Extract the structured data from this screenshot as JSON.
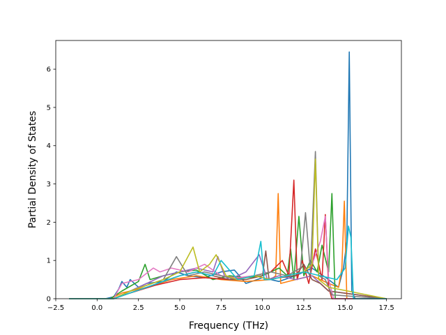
{
  "chart_data": {
    "type": "line",
    "title": "",
    "xlabel": "Frequency (THz)",
    "ylabel": "Partial Density of States",
    "xlim": [
      -2.5,
      18.4
    ],
    "ylim": [
      0,
      6.75
    ],
    "xticks": [
      "−2.5",
      "0.0",
      "2.5",
      "5.0",
      "7.5",
      "10.0",
      "12.5",
      "15.0",
      "17.5"
    ],
    "xtick_values": [
      -2.5,
      0,
      2.5,
      5,
      7.5,
      10,
      12.5,
      15,
      17.5
    ],
    "yticks": [
      "0",
      "1",
      "2",
      "3",
      "4",
      "5",
      "6"
    ],
    "ytick_values": [
      0,
      1,
      2,
      3,
      4,
      5,
      6
    ],
    "grid": false,
    "legend": "none",
    "colors": [
      "#1f77b4",
      "#ff7f0e",
      "#2ca02c",
      "#d62728",
      "#9467bd",
      "#8c564b",
      "#e377c2",
      "#7f7f7f",
      "#bcbd22",
      "#17becf"
    ],
    "series": [
      {
        "color": "#1f77b4",
        "x": [
          -1.7,
          0.5,
          1.0,
          1.3,
          1.5,
          1.8,
          2.0,
          2.5,
          3.0,
          4.0,
          4.8,
          5.5,
          6.5,
          7.5,
          8.3,
          9.0,
          10.0,
          11.0,
          12.0,
          13.0,
          14.0,
          14.6,
          14.9,
          15.1,
          15.25,
          15.4,
          15.6,
          17.5
        ],
        "y": [
          0,
          0,
          0.05,
          0.25,
          0.45,
          0.3,
          0.5,
          0.3,
          0.4,
          0.45,
          0.7,
          0.6,
          0.55,
          0.7,
          0.75,
          0.4,
          0.55,
          0.45,
          0.6,
          0.8,
          0.5,
          0.3,
          0.8,
          1.5,
          6.45,
          0.2,
          0,
          0
        ]
      },
      {
        "color": "#ff7f0e",
        "x": [
          -1.7,
          0.8,
          1.5,
          3.0,
          4.5,
          6.0,
          7.5,
          9.0,
          10.5,
          10.8,
          10.95,
          11.1,
          12.0,
          13.0,
          14.0,
          14.6,
          14.8,
          14.95,
          15.1,
          17.5
        ],
        "y": [
          0,
          0,
          0.15,
          0.3,
          0.5,
          0.6,
          0.5,
          0.45,
          0.5,
          0.6,
          2.75,
          0.4,
          0.5,
          0.6,
          0.4,
          0.3,
          0.8,
          2.55,
          0,
          0
        ]
      },
      {
        "color": "#2ca02c",
        "x": [
          -1.7,
          0.8,
          1.5,
          2.5,
          2.9,
          3.2,
          4.0,
          5.0,
          6.0,
          7.0,
          8.0,
          9.0,
          10.0,
          10.5,
          11.0,
          11.5,
          11.7,
          11.9,
          12.2,
          12.5,
          12.9,
          13.3,
          13.6,
          14.0,
          14.2,
          14.4,
          17.5
        ],
        "y": [
          0,
          0,
          0.2,
          0.45,
          0.9,
          0.5,
          0.6,
          0.7,
          0.75,
          0.5,
          0.6,
          0.55,
          0.6,
          0.7,
          0.8,
          0.6,
          1.3,
          0.5,
          2.15,
          0.6,
          1.0,
          0.7,
          1.4,
          0.7,
          2.75,
          0,
          0
        ]
      },
      {
        "color": "#d62728",
        "x": [
          -1.7,
          1.0,
          2.0,
          3.5,
          5.0,
          6.5,
          8.0,
          9.5,
          10.5,
          11.2,
          11.6,
          11.9,
          12.1,
          12.4,
          12.8,
          13.2,
          13.6,
          13.8,
          14.0,
          14.2,
          17.5
        ],
        "y": [
          0,
          0,
          0.15,
          0.35,
          0.5,
          0.55,
          0.5,
          0.6,
          0.7,
          1.0,
          0.6,
          3.1,
          0.5,
          1.0,
          0.4,
          1.3,
          0.5,
          2.2,
          0.3,
          0,
          0
        ]
      },
      {
        "color": "#9467bd",
        "x": [
          -1.7,
          1.0,
          2.0,
          3.0,
          4.0,
          5.0,
          6.0,
          7.0,
          7.3,
          7.7,
          8.0,
          9.0,
          9.8,
          10.3,
          11.0,
          12.0,
          13.0,
          13.5,
          14.0,
          17.5
        ],
        "y": [
          0,
          0,
          0.2,
          0.4,
          0.6,
          0.7,
          0.8,
          0.7,
          1.1,
          0.6,
          0.5,
          0.7,
          1.15,
          0.5,
          0.6,
          0.5,
          0.6,
          0.4,
          0.2,
          0
        ]
      },
      {
        "color": "#8c564b",
        "x": [
          -1.7,
          1.0,
          2.0,
          3.0,
          4.0,
          5.0,
          6.0,
          7.0,
          8.0,
          9.0,
          10.0,
          10.2,
          10.4,
          11.0,
          12.0,
          12.5,
          13.0,
          13.5,
          14.0,
          17.5
        ],
        "y": [
          0,
          0,
          0.15,
          0.3,
          0.45,
          0.6,
          0.7,
          0.6,
          0.5,
          0.5,
          0.6,
          1.25,
          0.5,
          0.55,
          0.6,
          0.9,
          0.5,
          0.4,
          0.2,
          0
        ]
      },
      {
        "color": "#e377c2",
        "x": [
          -1.7,
          1.0,
          1.5,
          2.5,
          3.4,
          3.8,
          4.5,
          5.5,
          6.5,
          7.5,
          8.5,
          9.5,
          10.5,
          11.5,
          12.5,
          13.0,
          13.5,
          13.8,
          14.0,
          14.3,
          17.5
        ],
        "y": [
          0,
          0,
          0.4,
          0.5,
          0.8,
          0.7,
          0.8,
          0.7,
          0.9,
          0.6,
          0.55,
          0.6,
          0.5,
          0.6,
          0.7,
          0.9,
          1.5,
          2.15,
          0.5,
          0,
          0
        ]
      },
      {
        "color": "#7f7f7f",
        "x": [
          -1.7,
          1.0,
          2.0,
          3.0,
          4.0,
          4.8,
          5.5,
          6.5,
          7.5,
          8.5,
          9.5,
          10.5,
          11.5,
          12.3,
          12.6,
          12.9,
          13.2,
          13.4,
          13.8,
          14.2,
          17.5
        ],
        "y": [
          0,
          0,
          0.2,
          0.35,
          0.5,
          1.1,
          0.6,
          0.7,
          0.6,
          0.5,
          0.6,
          0.7,
          0.6,
          0.8,
          2.25,
          0.7,
          3.85,
          0.6,
          0.5,
          0.1,
          0
        ]
      },
      {
        "color": "#bcbd22",
        "x": [
          -1.7,
          1.0,
          2.0,
          3.0,
          4.0,
          5.0,
          5.8,
          6.2,
          6.8,
          7.2,
          7.8,
          8.5,
          9.5,
          10.5,
          11.5,
          12.5,
          13.0,
          13.2,
          13.4,
          14.0,
          17.5
        ],
        "y": [
          0,
          0,
          0.2,
          0.35,
          0.5,
          0.7,
          1.35,
          0.7,
          0.9,
          1.15,
          0.6,
          0.5,
          0.6,
          0.5,
          0.6,
          0.7,
          0.9,
          3.65,
          0.5,
          0.3,
          0
        ]
      },
      {
        "color": "#17becf",
        "x": [
          -1.7,
          1.0,
          2.0,
          3.0,
          4.0,
          5.0,
          6.0,
          7.0,
          7.5,
          8.5,
          9.5,
          9.9,
          10.1,
          10.5,
          11.5,
          12.5,
          13.5,
          14.5,
          15.0,
          15.2,
          15.35,
          15.5,
          17.5
        ],
        "y": [
          0,
          0,
          0.15,
          0.3,
          0.45,
          0.6,
          0.7,
          0.6,
          1.0,
          0.5,
          0.6,
          1.5,
          0.5,
          0.5,
          0.6,
          0.7,
          0.6,
          0.5,
          0.8,
          1.9,
          1.6,
          0,
          0
        ]
      }
    ]
  }
}
